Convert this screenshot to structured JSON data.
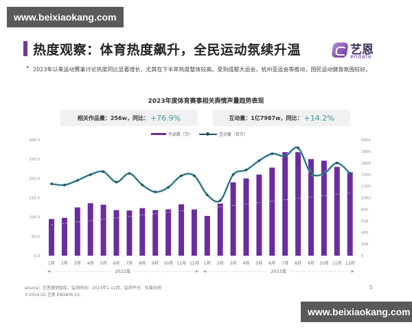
{
  "watermark": {
    "top_text": "www.beixiaokang.com",
    "bottom_text": "www.beixiaokang.com"
  },
  "slide": {
    "title": "热度观察：体育热度飙升，全民运动氛续升温",
    "logo": {
      "cn": "艺恩",
      "en": "endata"
    },
    "bullet": "2023年以来运动赛事讨论热度同比显著增长，尤其在下半年热度整体较高，受到成都大运会、杭州亚运会等推动，国民运动健身氛围较好。",
    "chart_title": "2023年度体育赛事相关舆情声量趋势表现",
    "kpi_left": {
      "label": "相关作品量：256w，同比：",
      "value": "+76.9%"
    },
    "kpi_right": {
      "label": "互动量：1亿7987w，同比：",
      "value": "+14.2%"
    },
    "legend": {
      "bar": "作品数（万）",
      "line": "互动量（百万）"
    },
    "year_2022": "2022年",
    "year_2023": "2023年",
    "source_line1": "source：艺恩营销智库，监测时间：2023年1-12月，监测平台：社媒全网",
    "source_line2": "©2024.02 艺恩 ENDATA Inc.",
    "page_number": "5"
  },
  "colors": {
    "bar": "#6a2d9f",
    "line": "#1f4f5e",
    "line_glow": "#7fd3e6",
    "title_accent": "#6a3a9c",
    "pct": "#3a9a96"
  },
  "chart_data": {
    "type": "bar",
    "title": "2023年度体育赛事相关舆情声量趋势表现",
    "categories": [
      "1月",
      "2月",
      "3月",
      "4月",
      "5月",
      "6月",
      "7月",
      "8月",
      "9月",
      "10月",
      "11月",
      "12月",
      "1月",
      "2月",
      "3月",
      "4月",
      "5月",
      "6月",
      "7月",
      "8月",
      "9月",
      "10月",
      "11月",
      "12月"
    ],
    "groups": [
      {
        "label": "2022年",
        "range": [
          0,
          11
        ]
      },
      {
        "label": "2023年",
        "range": [
          12,
          23
        ]
      }
    ],
    "series": [
      {
        "name": "作品数（万）",
        "type": "bar",
        "axis": "left",
        "values": [
          95,
          98,
          125,
          136,
          132,
          118,
          117,
          123,
          118,
          120,
          133,
          120,
          103,
          135,
          190,
          200,
          210,
          228,
          268,
          268,
          250,
          246,
          230,
          216
        ]
      },
      {
        "name": "互动量（百万）",
        "type": "line",
        "axis": "right",
        "values": [
          1240,
          1220,
          1300,
          1400,
          1450,
          1270,
          1420,
          1220,
          1100,
          1180,
          1380,
          1380,
          1050,
          950,
          1400,
          1480,
          1640,
          1760,
          1720,
          1860,
          1420,
          1420,
          1600,
          1420
        ]
      }
    ],
    "left_axis": {
      "ticks": [
        "0.0",
        "50.0",
        "100.0",
        "150.0",
        "200.0",
        "250.0",
        "300.0"
      ],
      "ylim": [
        0,
        300
      ]
    },
    "right_axis": {
      "ticks": [
        "0",
        "200",
        "400",
        "600",
        "800",
        "1000",
        "1200",
        "1400",
        "1600",
        "1800",
        "2000"
      ],
      "ylim": [
        0,
        2000
      ]
    },
    "kpis": [
      {
        "label": "相关作品量",
        "value": "256w",
        "yoy": "+76.9%"
      },
      {
        "label": "互动量",
        "value": "1亿7987w",
        "yoy": "+14.2%"
      }
    ],
    "legend_position": "top",
    "grid": false
  }
}
